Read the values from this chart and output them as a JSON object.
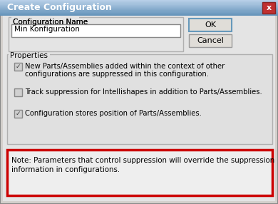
{
  "title": "Create Configuration",
  "config_name_label": "Configuration Name",
  "config_name_value": "Min Konfiguration",
  "btn_ok": "OK",
  "btn_cancel": "Cancel",
  "properties_label": "Properties",
  "checkbox1_line1": "New Parts/Assemblies added within the context of other",
  "checkbox1_line2": "configurations are suppressed in this configuration.",
  "checkbox1_checked": true,
  "checkbox2_text": "Track suppression for Intellishapes in addition to Parts/Assemblies.",
  "checkbox2_checked": false,
  "checkbox3_text": "Configuration stores position of Parts/Assemblies.",
  "checkbox3_checked": true,
  "note_line1": "Note: Parameters that control suppression will override the suppression",
  "note_line2": "information in configurations.",
  "note_border_color": "#cc0000",
  "titlebar_color_top": "#b8d0e8",
  "titlebar_color_bot": "#6090b8",
  "dialog_bg": "#e0e0e0",
  "close_btn_color": "#c03030",
  "text_color": "#000000",
  "input_bg": "#ffffff",
  "btn_bg": "#e0ddd8",
  "properties_box_bg": "#e8e8e8",
  "checkbox_bg": "#d0d0d0",
  "checkbox_border": "#888888",
  "group_border": "#b0b0b0",
  "note_bg": "#eeeeee"
}
